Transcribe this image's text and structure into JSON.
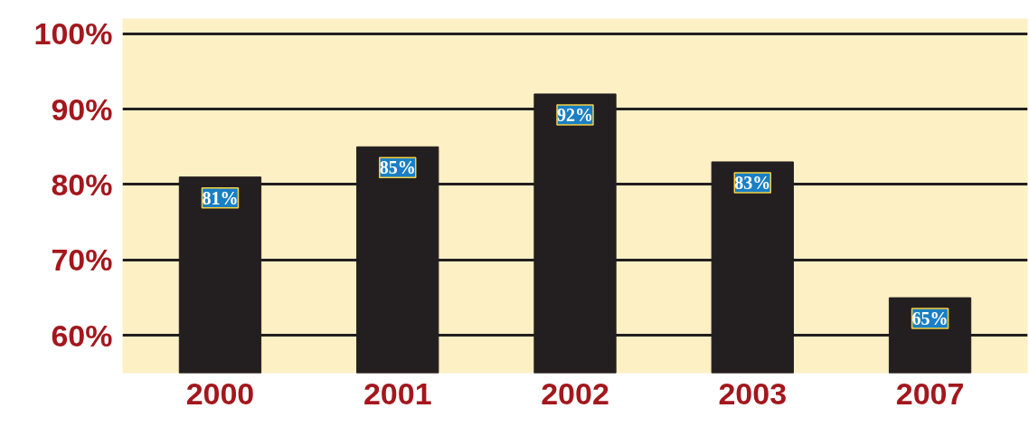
{
  "chart_data": {
    "type": "bar",
    "categories": [
      "2000",
      "2001",
      "2002",
      "2003",
      "2007"
    ],
    "values": [
      81,
      85,
      92,
      83,
      65
    ],
    "value_labels": [
      "81%",
      "85%",
      "92%",
      "83%",
      "65%"
    ],
    "color": "#231f20",
    "ylim": [
      55,
      102
    ],
    "yticks": [
      {
        "value": 60,
        "label": "60%"
      },
      {
        "value": 70,
        "label": "70%"
      },
      {
        "value": 80,
        "label": "80%"
      },
      {
        "value": 90,
        "label": "90%"
      },
      {
        "value": 100,
        "label": "100%"
      }
    ],
    "grid": "y"
  }
}
